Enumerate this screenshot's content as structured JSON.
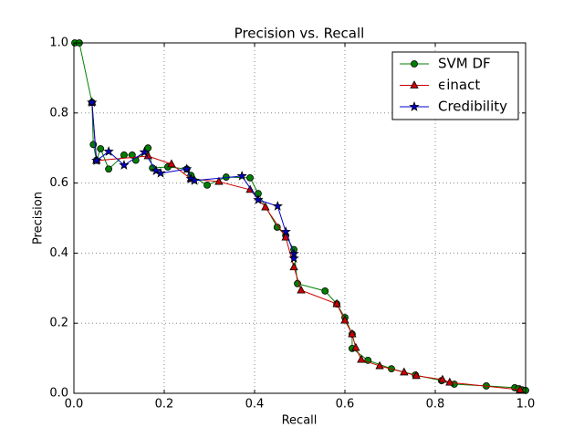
{
  "chart_data": {
    "type": "line",
    "title": "Precision vs. Recall",
    "x_label": "Recall",
    "y_label": "Precision",
    "xlim": [
      0,
      1
    ],
    "ylim": [
      0,
      1
    ],
    "xticks": [
      {
        "value": 0,
        "label": "0.0"
      },
      0.2,
      0.4,
      0.6,
      0.8,
      {
        "value": 1,
        "label": "1.0"
      }
    ],
    "yticks": [
      {
        "value": 0,
        "label": "0.0"
      },
      0.2,
      0.4,
      0.6,
      0.8,
      {
        "value": 1,
        "label": "1.0"
      }
    ],
    "grid": true,
    "legend": "upper right",
    "series": [
      {
        "name": "SVM DF",
        "color": "#008000",
        "marker": "circle",
        "x": [
          0.002,
          0.012,
          0.04,
          0.043,
          0.05,
          0.059,
          0.077,
          0.111,
          0.129,
          0.137,
          0.164,
          0.174,
          0.208,
          0.25,
          0.259,
          0.295,
          0.337,
          0.39,
          0.408,
          0.45,
          0.469,
          0.487,
          0.495,
          0.556,
          0.582,
          0.6,
          0.616,
          0.616,
          0.651,
          0.703,
          0.756,
          0.814,
          0.842,
          0.913,
          0.976,
          0.984,
          0.992,
          1.0
        ],
        "values": [
          1.0,
          1.0,
          0.83,
          0.71,
          0.665,
          0.698,
          0.64,
          0.68,
          0.68,
          0.665,
          0.7,
          0.643,
          0.646,
          0.64,
          0.622,
          0.594,
          0.617,
          0.615,
          0.57,
          0.474,
          0.45,
          0.41,
          0.313,
          0.292,
          0.255,
          0.216,
          0.169,
          0.128,
          0.094,
          0.07,
          0.052,
          0.036,
          0.026,
          0.021,
          0.016,
          0.013,
          0.01,
          0.008
        ]
      },
      {
        "name": "ϵinact",
        "color": "#cc0000",
        "marker": "triangle",
        "x": [
          0.04,
          0.05,
          0.164,
          0.216,
          0.259,
          0.321,
          0.39,
          0.424,
          0.469,
          0.487,
          0.503,
          0.582,
          0.6,
          0.616,
          0.624,
          0.636,
          0.677,
          0.731,
          0.758,
          0.816,
          0.832,
          0.988
        ],
        "values": [
          0.83,
          0.664,
          0.677,
          0.654,
          0.612,
          0.604,
          0.581,
          0.531,
          0.445,
          0.36,
          0.294,
          0.255,
          0.208,
          0.169,
          0.13,
          0.096,
          0.078,
          0.06,
          0.05,
          0.039,
          0.031,
          0.01
        ]
      },
      {
        "name": "Credibility",
        "color": "#0000cc",
        "marker": "star",
        "x": [
          0.04,
          0.05,
          0.077,
          0.111,
          0.156,
          0.182,
          0.192,
          0.25,
          0.259,
          0.267,
          0.372,
          0.408,
          0.451,
          0.469,
          0.487,
          0.487
        ],
        "values": [
          0.83,
          0.664,
          0.69,
          0.651,
          0.688,
          0.635,
          0.628,
          0.64,
          0.612,
          0.607,
          0.62,
          0.552,
          0.534,
          0.461,
          0.398,
          0.385
        ]
      }
    ]
  }
}
